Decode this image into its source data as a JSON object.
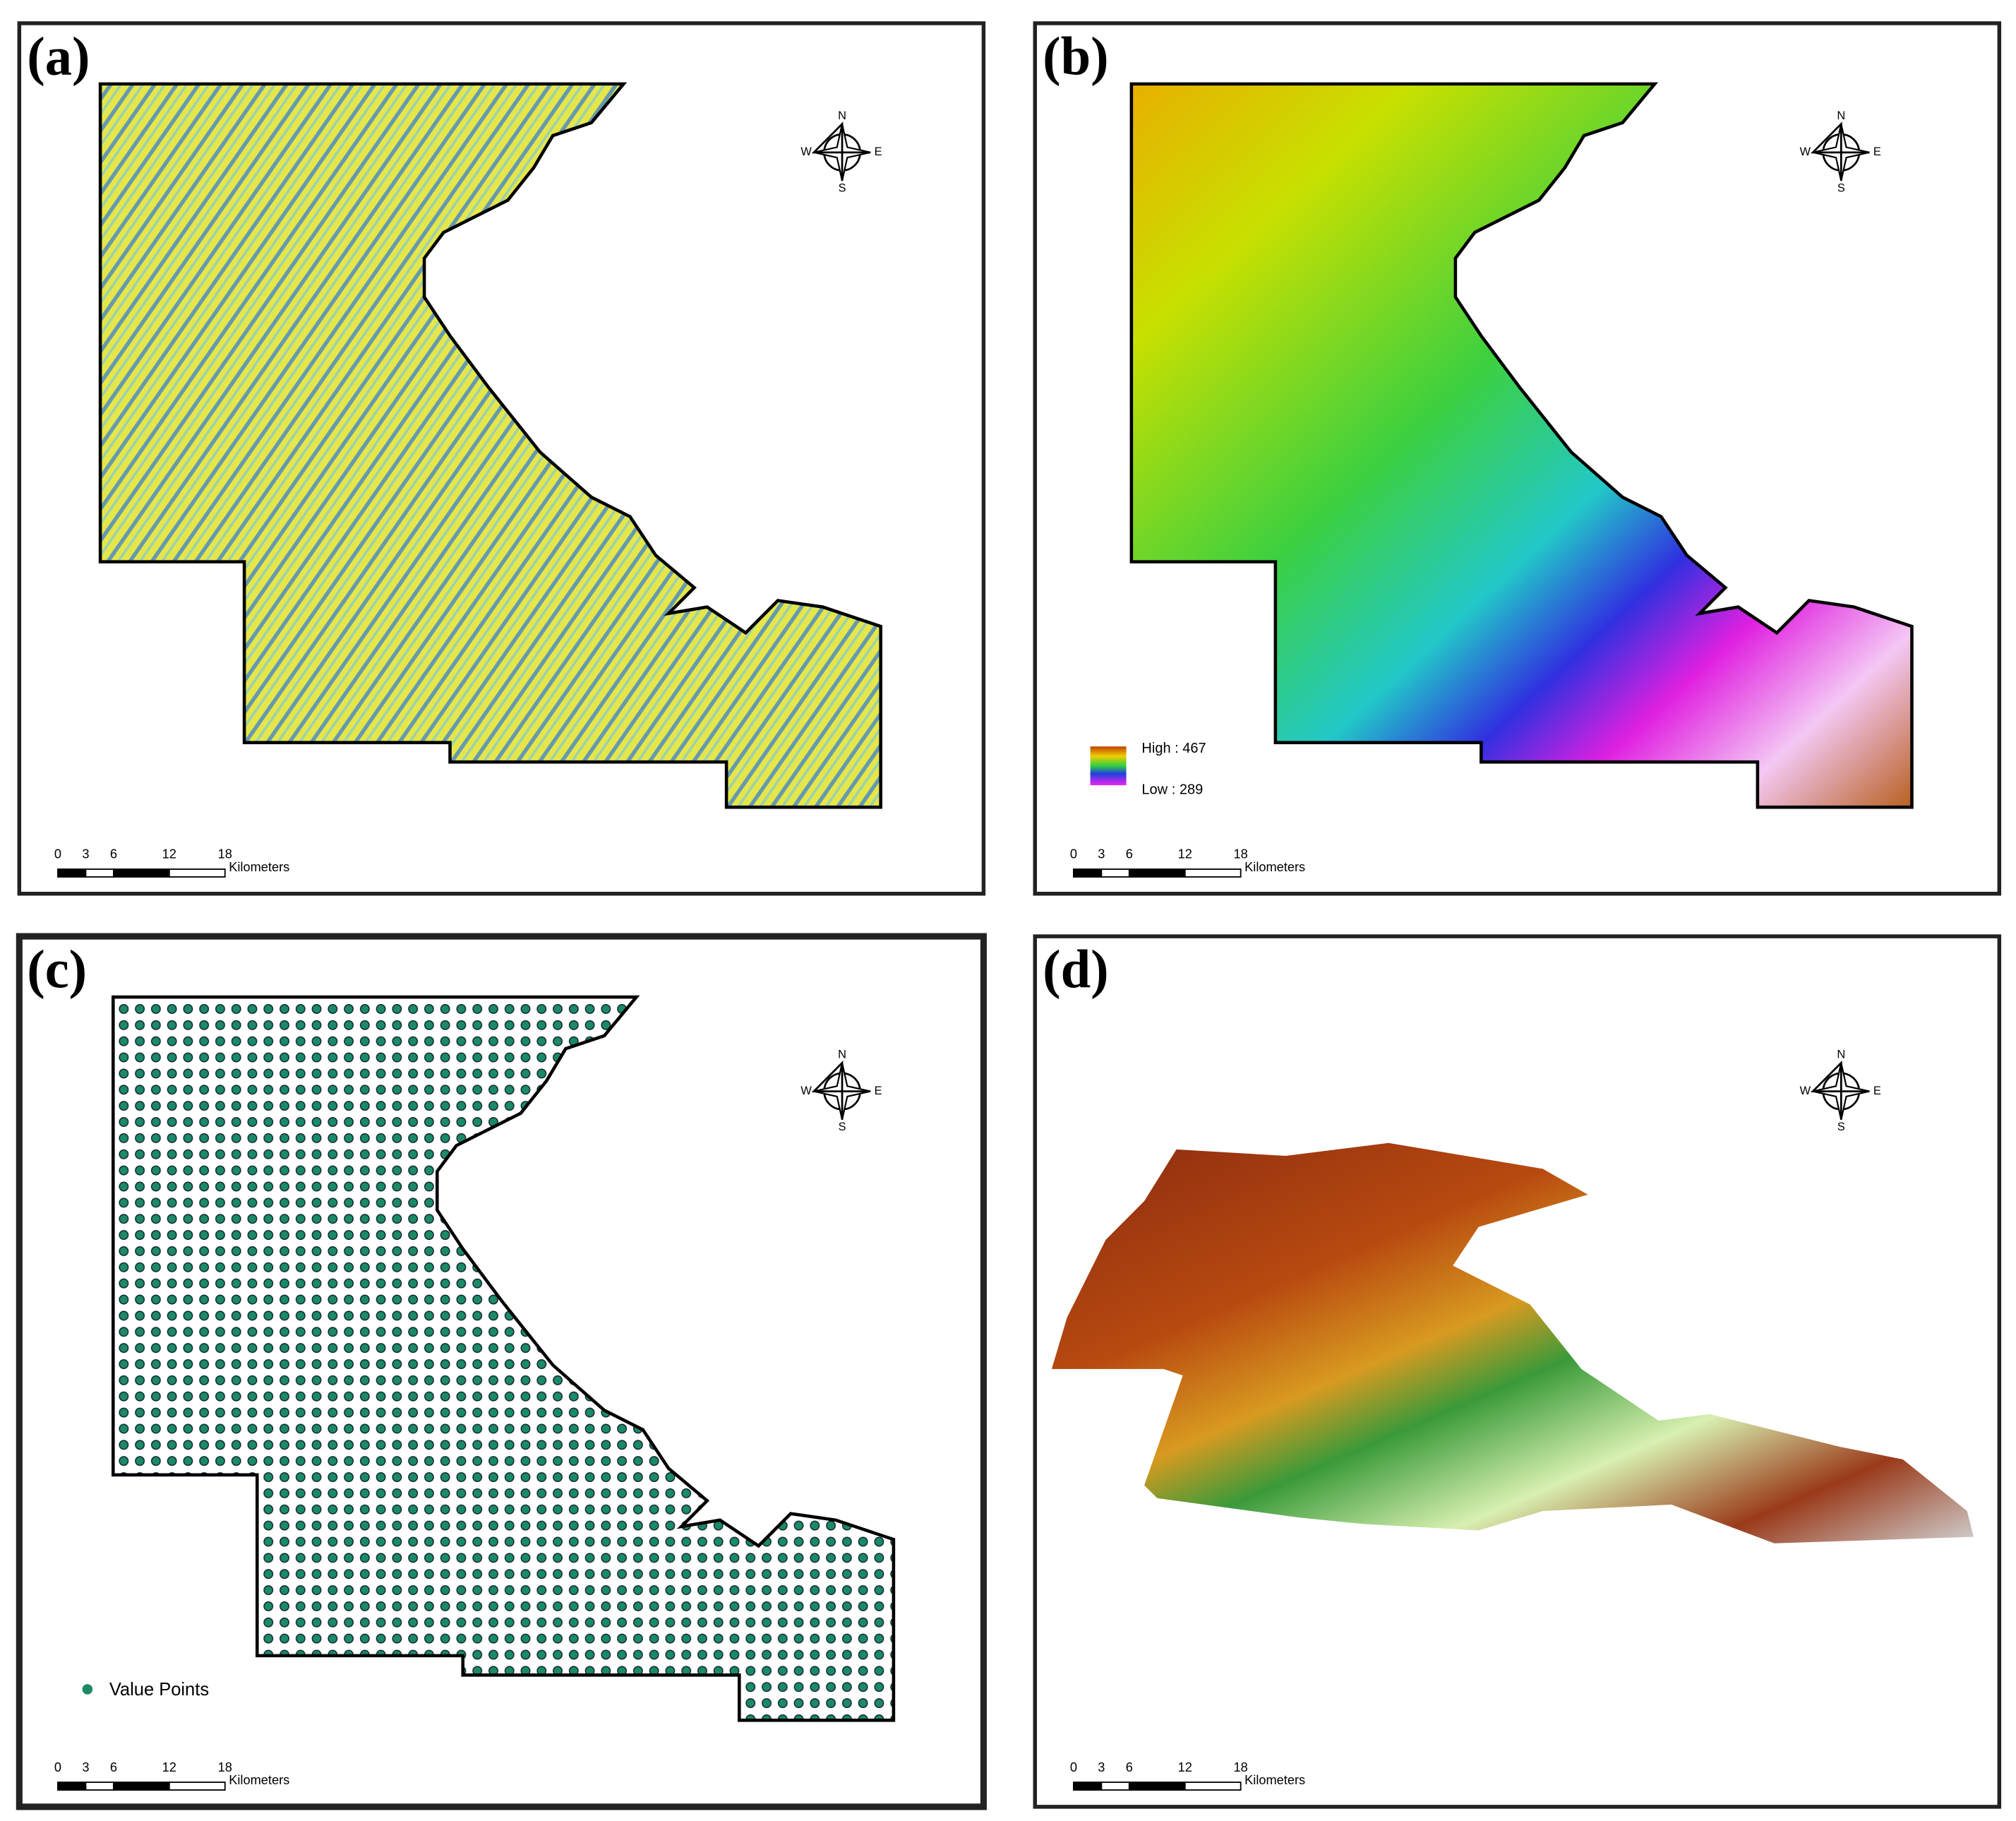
{
  "panels": [
    {
      "label": "(a)"
    },
    {
      "label": "(b)",
      "legend": {
        "high": "High : 467",
        "low": "Low : 289"
      }
    },
    {
      "label": "(c)",
      "legend": {
        "item": "Value Points"
      }
    },
    {
      "label": "(d)"
    }
  ],
  "compass": {
    "north": "N",
    "south": "S",
    "east": "E",
    "west": "W"
  },
  "scale_bar": {
    "ticks": [
      0,
      3,
      6,
      12,
      18
    ],
    "unit": "Kilometers"
  }
}
